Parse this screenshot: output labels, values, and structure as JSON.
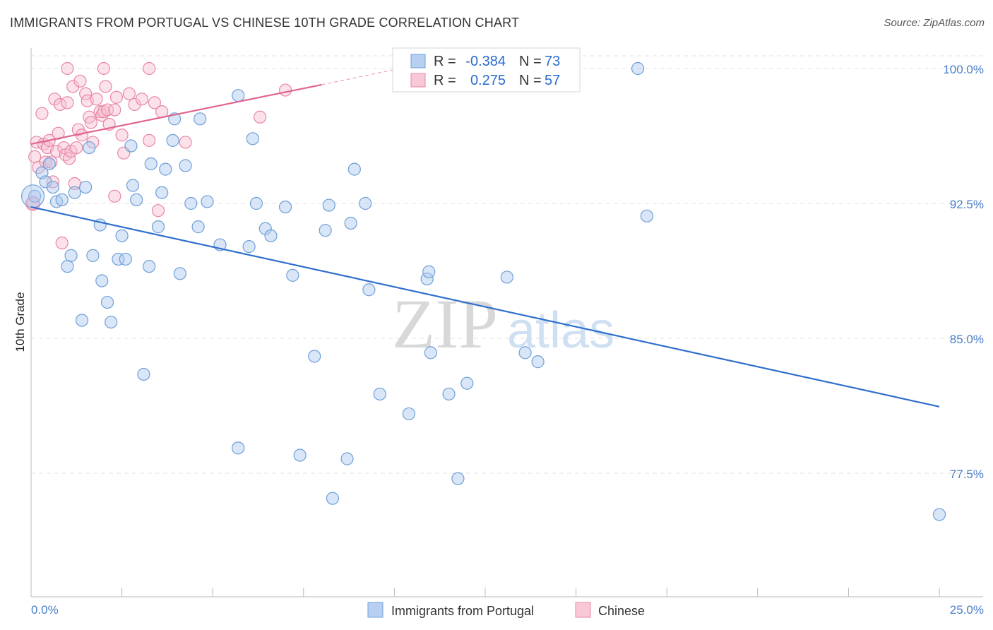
{
  "title": "IMMIGRANTS FROM PORTUGAL VS CHINESE 10TH GRADE CORRELATION CHART",
  "source": "Source: ZipAtlas.com",
  "watermark": {
    "zip": "ZIP",
    "atlas": "atlas"
  },
  "colors": {
    "portugal_fill": "#aac8ee",
    "portugal_stroke": "#6f9fd8",
    "portugal_line": "#2f6fcc",
    "chinese_fill": "#f6bfd0",
    "chinese_stroke": "#e986a5",
    "chinese_line": "#e0668f",
    "grid": "#e0e0e0",
    "tick_label": "#4a7fc9"
  },
  "legend_box": {
    "rows": [
      {
        "r_key": "R =",
        "r_val": "-0.384",
        "n_key": "N =",
        "n_val": "73"
      },
      {
        "r_key": "R =",
        "r_val": "0.275",
        "n_key": "N =",
        "n_val": "57"
      }
    ]
  },
  "chart_data": {
    "type": "scatter",
    "title": "IMMIGRANTS FROM PORTUGAL VS CHINESE 10TH GRADE CORRELATION CHART",
    "xlabel": "",
    "ylabel": "10th Grade",
    "xlim": [
      0,
      25
    ],
    "ylim": [
      70.2,
      101.5
    ],
    "x_tick_labels": [
      "0.0%",
      "25.0%"
    ],
    "y_ticks": [
      77.5,
      85.0,
      92.5,
      100.0
    ],
    "y_tick_labels": [
      "77.5%",
      "85.0%",
      "92.5%",
      "100.0%"
    ],
    "grid": "horizontal dashed",
    "legend_position": "bottom-center",
    "series": [
      {
        "name": "Immigrants from Portugal",
        "r": -0.384,
        "n": 73,
        "trend": {
          "x": [
            0,
            25
          ],
          "y": [
            92.3,
            81.2
          ]
        },
        "points": [
          [
            0.1,
            92.9
          ],
          [
            0.3,
            94.2
          ],
          [
            0.4,
            93.7
          ],
          [
            0.5,
            94.7
          ],
          [
            0.6,
            93.4
          ],
          [
            0.7,
            92.6
          ],
          [
            0.85,
            92.7
          ],
          [
            1.0,
            89.0
          ],
          [
            1.1,
            89.6
          ],
          [
            1.2,
            93.1
          ],
          [
            1.4,
            86.0
          ],
          [
            1.5,
            93.4
          ],
          [
            1.6,
            95.6
          ],
          [
            1.7,
            89.6
          ],
          [
            1.9,
            91.3
          ],
          [
            1.95,
            88.2
          ],
          [
            2.1,
            87.0
          ],
          [
            2.2,
            85.9
          ],
          [
            2.4,
            89.4
          ],
          [
            2.5,
            90.7
          ],
          [
            2.6,
            89.4
          ],
          [
            2.75,
            95.7
          ],
          [
            2.8,
            93.5
          ],
          [
            2.9,
            92.7
          ],
          [
            3.1,
            83.0
          ],
          [
            3.25,
            89.0
          ],
          [
            3.3,
            94.7
          ],
          [
            3.5,
            91.2
          ],
          [
            3.6,
            93.1
          ],
          [
            3.7,
            94.4
          ],
          [
            3.9,
            96.0
          ],
          [
            3.95,
            97.2
          ],
          [
            4.1,
            88.6
          ],
          [
            4.25,
            94.6
          ],
          [
            4.4,
            92.5
          ],
          [
            4.6,
            91.2
          ],
          [
            4.65,
            97.2
          ],
          [
            4.85,
            92.6
          ],
          [
            5.2,
            90.2
          ],
          [
            5.7,
            78.9
          ],
          [
            5.7,
            98.5
          ],
          [
            6.0,
            90.1
          ],
          [
            6.1,
            96.1
          ],
          [
            6.2,
            92.5
          ],
          [
            6.45,
            91.1
          ],
          [
            6.6,
            90.7
          ],
          [
            7.0,
            92.3
          ],
          [
            7.2,
            88.5
          ],
          [
            7.4,
            78.5
          ],
          [
            7.8,
            84.0
          ],
          [
            8.1,
            91.0
          ],
          [
            8.2,
            92.4
          ],
          [
            8.3,
            76.1
          ],
          [
            8.7,
            78.3
          ],
          [
            8.8,
            91.4
          ],
          [
            8.9,
            94.4
          ],
          [
            9.2,
            92.5
          ],
          [
            9.3,
            87.7
          ],
          [
            9.6,
            81.9
          ],
          [
            10.4,
            80.8
          ],
          [
            10.9,
            88.3
          ],
          [
            10.95,
            88.7
          ],
          [
            11.0,
            84.2
          ],
          [
            11.5,
            81.9
          ],
          [
            11.75,
            77.2
          ],
          [
            12.0,
            82.5
          ],
          [
            13.1,
            88.4
          ],
          [
            13.6,
            84.2
          ],
          [
            13.95,
            83.7
          ],
          [
            13.95,
            100.0
          ],
          [
            16.7,
            100.0
          ],
          [
            16.95,
            91.8
          ],
          [
            25.0,
            75.2
          ]
        ]
      },
      {
        "name": "Chinese",
        "r": 0.275,
        "n": 57,
        "trend": {
          "x": [
            0,
            8
          ],
          "y": [
            95.8,
            99.1
          ]
        },
        "trend_dashed_extension": {
          "x": [
            8,
            10.5
          ],
          "y": [
            99.1,
            100.15
          ]
        },
        "points": [
          [
            0.05,
            92.5
          ],
          [
            0.1,
            95.1
          ],
          [
            0.15,
            95.9
          ],
          [
            0.2,
            94.5
          ],
          [
            0.3,
            97.5
          ],
          [
            0.35,
            95.8
          ],
          [
            0.4,
            94.8
          ],
          [
            0.45,
            95.6
          ],
          [
            0.5,
            96.0
          ],
          [
            0.6,
            93.7
          ],
          [
            0.65,
            98.3
          ],
          [
            0.7,
            95.4
          ],
          [
            0.75,
            96.4
          ],
          [
            0.8,
            98.0
          ],
          [
            0.85,
            90.3
          ],
          [
            0.9,
            95.6
          ],
          [
            0.95,
            95.2
          ],
          [
            1.0,
            98.1
          ],
          [
            1.05,
            95.0
          ],
          [
            1.1,
            95.4
          ],
          [
            1.15,
            99.0
          ],
          [
            1.2,
            93.6
          ],
          [
            1.25,
            95.6
          ],
          [
            1.3,
            96.6
          ],
          [
            1.35,
            99.3
          ],
          [
            1.4,
            96.3
          ],
          [
            1.5,
            98.6
          ],
          [
            1.55,
            98.2
          ],
          [
            1.6,
            97.3
          ],
          [
            1.65,
            97.0
          ],
          [
            1.7,
            95.9
          ],
          [
            1.8,
            98.3
          ],
          [
            1.9,
            97.6
          ],
          [
            1.95,
            97.4
          ],
          [
            2.0,
            97.6
          ],
          [
            2.05,
            99.0
          ],
          [
            2.1,
            97.7
          ],
          [
            2.15,
            96.9
          ],
          [
            2.3,
            92.9
          ],
          [
            2.35,
            98.4
          ],
          [
            2.5,
            96.3
          ],
          [
            2.55,
            95.3
          ],
          [
            2.7,
            98.6
          ],
          [
            2.85,
            98.0
          ],
          [
            3.05,
            98.3
          ],
          [
            3.25,
            96.0
          ],
          [
            3.4,
            98.1
          ],
          [
            3.5,
            92.1
          ],
          [
            3.6,
            97.6
          ],
          [
            4.25,
            95.9
          ],
          [
            6.3,
            97.3
          ],
          [
            7.0,
            98.8
          ],
          [
            1.0,
            100.0
          ],
          [
            2.0,
            100.0
          ],
          [
            3.25,
            100.0
          ],
          [
            0.55,
            94.8
          ],
          [
            2.3,
            97.7
          ]
        ]
      }
    ]
  }
}
